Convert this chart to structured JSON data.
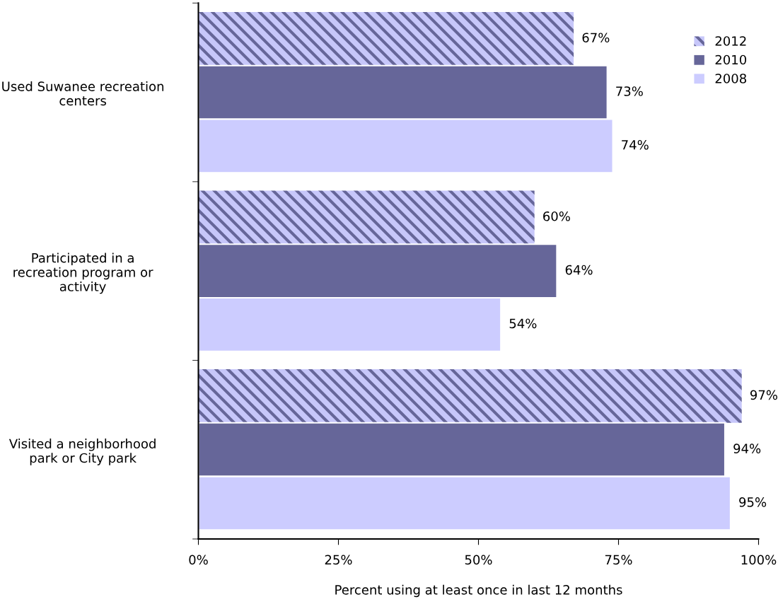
{
  "chart_data": {
    "type": "bar",
    "orientation": "horizontal",
    "xlabel": "Percent using at least once in last 12 months",
    "categories": [
      "Used Suwanee recreation centers",
      "Participated in a recreation program or activity",
      "Visited a neighborhood park or City park"
    ],
    "series": [
      {
        "name": "2012",
        "color": "#9999cc",
        "values": [
          67,
          60,
          97
        ],
        "value_labels": [
          "67%",
          "60%",
          "97%"
        ]
      },
      {
        "name": "2010",
        "color": "#666699",
        "values": [
          73,
          64,
          94
        ],
        "value_labels": [
          "73%",
          "64%",
          "94%"
        ]
      },
      {
        "name": "2008",
        "color": "#ccccff",
        "values": [
          74,
          54,
          95
        ],
        "value_labels": [
          "74%",
          "54%",
          "95%"
        ]
      }
    ],
    "xlim": [
      0,
      100
    ],
    "xticks": [
      {
        "value": 0,
        "label": "0%"
      },
      {
        "value": 25,
        "label": "25%"
      },
      {
        "value": 50,
        "label": "50%"
      },
      {
        "value": 75,
        "label": "75%"
      },
      {
        "value": 100,
        "label": "100%"
      }
    ],
    "grid": false,
    "legend": "top right"
  }
}
